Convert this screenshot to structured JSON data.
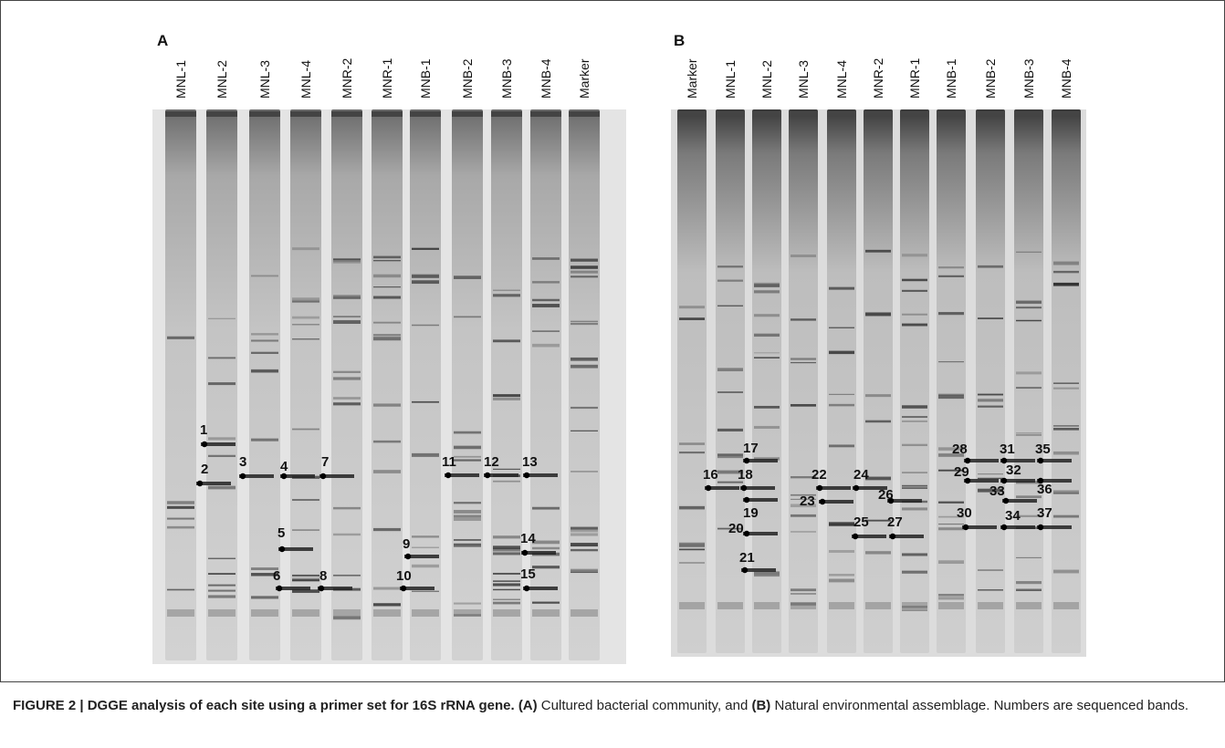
{
  "panels": [
    {
      "label": "A",
      "lanes": [
        "MNL-1",
        "MNL-2",
        "MNL-3",
        "MNL-4",
        "MNR-2",
        "MNR-1",
        "MNB-1",
        "MNB-2",
        "MNB-3",
        "MNB-4",
        "Marker"
      ],
      "bands": [
        "1",
        "2",
        "3",
        "4",
        "5",
        "6",
        "7",
        "8",
        "9",
        "10",
        "11",
        "12",
        "13",
        "14",
        "15"
      ]
    },
    {
      "label": "B",
      "lanes": [
        "Marker",
        "MNL-1",
        "MNL-2",
        "MNL-3",
        "MNL-4",
        "MNR-2",
        "MNR-1",
        "MNB-1",
        "MNB-2",
        "MNB-3",
        "MNB-4"
      ],
      "bands": [
        "16",
        "17",
        "18",
        "19",
        "20",
        "21",
        "22",
        "23",
        "24",
        "25",
        "26",
        "27",
        "28",
        "29",
        "30",
        "31",
        "32",
        "33",
        "34",
        "35",
        "36",
        "37"
      ]
    }
  ],
  "caption": [
    {
      "text": "FIGURE 2 | DGGE analysis of each site using a primer set for 16S rRNA gene. ",
      "bold": true
    },
    {
      "text": "(A)",
      "bold": true
    },
    {
      "text": " Cultured bacterial community, and ",
      "bold": false
    },
    {
      "text": "(B)",
      "bold": true
    },
    {
      "text": " Natural environmental assemblage. Numbers are sequenced bands.",
      "bold": false
    }
  ]
}
